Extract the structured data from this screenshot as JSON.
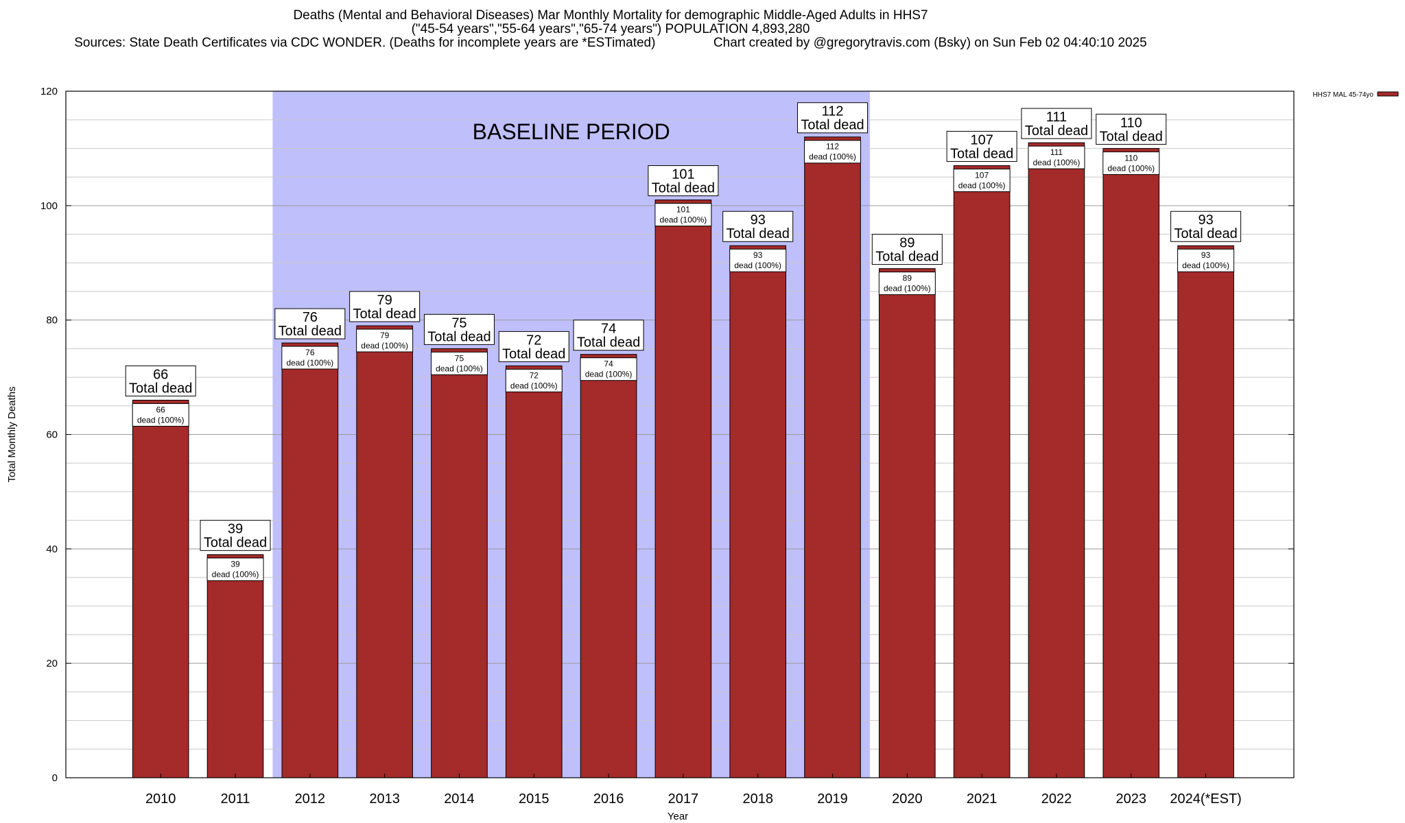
{
  "header": {
    "title_line1": "Deaths (Mental and Behavioral Diseases) Mar Monthly Mortality for demographic Middle-Aged Adults in HHS7",
    "title_line2": "(\"45-54 years\",\"55-64 years\",\"65-74 years\") POPULATION 4,893,280",
    "title_line3_left": "Sources: State Death Certificates via CDC WONDER. (Deaths for incomplete years are *ESTimated)",
    "title_line3_right": "Chart created by @gregorytravis.com (Bsky) on Sun Feb 02 04:40:10 2025"
  },
  "chart_data": {
    "type": "bar",
    "categories": [
      "2010",
      "2011",
      "2012",
      "2013",
      "2014",
      "2015",
      "2016",
      "2017",
      "2018",
      "2019",
      "2020",
      "2021",
      "2022",
      "2023",
      "2024(*EST)"
    ],
    "series": [
      {
        "name": "HHS7 MAL 45-74yo",
        "values": [
          66,
          39,
          76,
          79,
          75,
          72,
          74,
          101,
          93,
          112,
          89,
          107,
          111,
          110,
          93
        ]
      }
    ],
    "top_label_suffix": "Total dead",
    "inner_label_suffix": "dead (100%)",
    "xlabel": "Year",
    "ylabel": "Total Monthly Deaths",
    "ylim": [
      0,
      120
    ],
    "yticks": [
      0,
      20,
      40,
      60,
      80,
      100,
      120
    ],
    "grid": true,
    "legend_position": "top-right",
    "baseline_period": {
      "label": "BASELINE PERIOD",
      "from": "2012",
      "to": "2019"
    },
    "colors": {
      "bar": "#a52a2a",
      "baseline_shade": "#bfbffc",
      "background": "#ffffff"
    }
  }
}
